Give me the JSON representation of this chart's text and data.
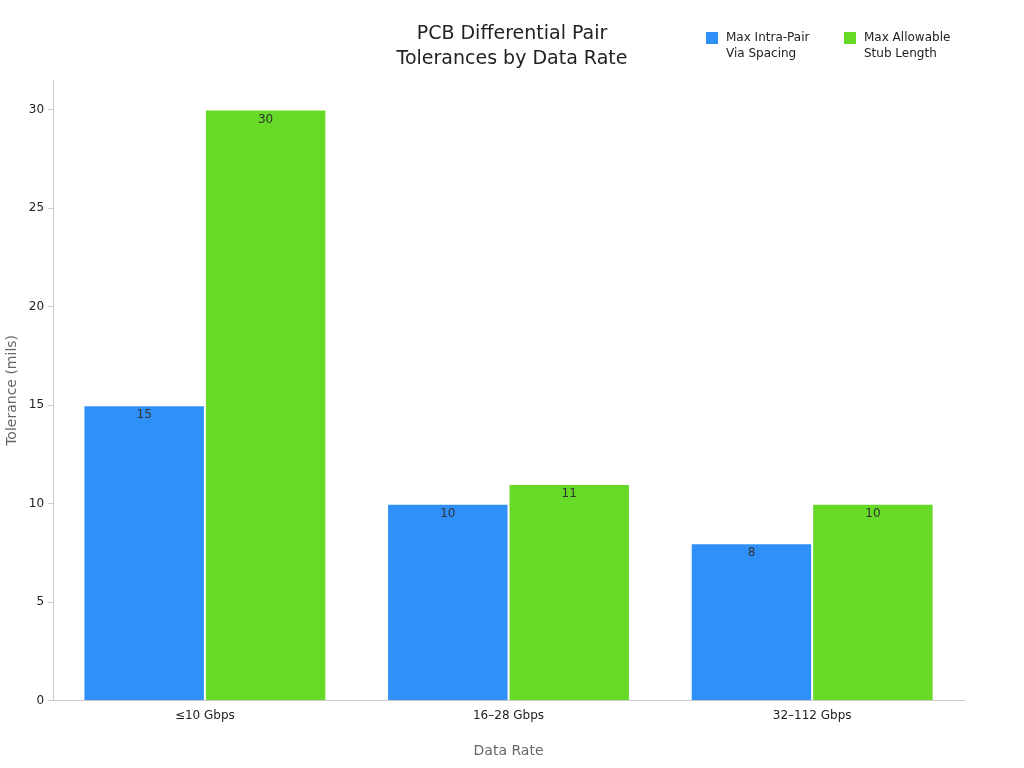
{
  "chart_data": {
    "type": "bar",
    "title": "PCB Differential Pair\nTolerances by Data Rate",
    "xlabel": "Data Rate",
    "ylabel": "Tolerance (mils)",
    "categories": [
      "≤10 Gbps",
      "16–28 Gbps",
      "32–112 Gbps"
    ],
    "series": [
      {
        "name": "Max Intra-Pair Via Spacing",
        "color": "#2e90f8",
        "values": [
          15,
          10,
          8
        ]
      },
      {
        "name": "Max Allowable Stub Length",
        "color": "#66da26",
        "values": [
          30,
          11,
          10
        ]
      }
    ],
    "ylim": [
      0,
      31.5
    ],
    "yticks": [
      0,
      5,
      10,
      15,
      20,
      25,
      30
    ],
    "grid": false,
    "legend": "top right",
    "data_labels": true
  }
}
